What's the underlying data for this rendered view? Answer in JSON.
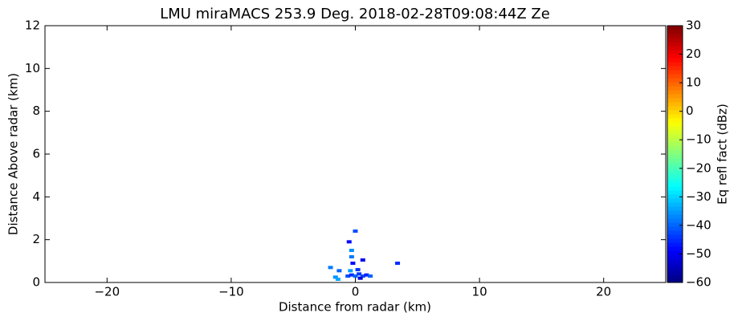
{
  "chart_data": {
    "type": "scatter",
    "title": "LMU miraMACS 253.9 Deg. 2018-02-28T09:08:44Z  Ze",
    "x_label": "Distance from radar (km)",
    "y_label": "Distance Above radar  (km)",
    "colorbar_label": "Eq refl fact (dBz)",
    "colormap": "jet",
    "xlim": [
      -25,
      25
    ],
    "xticks": [
      {
        "value": -20,
        "label": "−20"
      },
      {
        "value": -10,
        "label": "−10"
      },
      0,
      10,
      20
    ],
    "ylim": [
      0,
      12
    ],
    "yticks": [
      0,
      2,
      4,
      6,
      8,
      10,
      12
    ],
    "clim": [
      -60,
      30
    ],
    "cticks": [
      {
        "value": -60,
        "label": "−60"
      },
      {
        "value": -50,
        "label": "−50"
      },
      {
        "value": -40,
        "label": "−40"
      },
      {
        "value": -30,
        "label": "−30"
      },
      {
        "value": -20,
        "label": "−20"
      },
      {
        "value": -10,
        "label": "−10"
      },
      0,
      10,
      20,
      30
    ],
    "x": [
      -0.6,
      -0.3,
      0,
      0.3,
      0.6,
      0.9,
      1.2,
      -0.4,
      -0.3,
      -0.3,
      -0.5,
      0,
      0.6,
      -1.3,
      -1.6,
      -2.0,
      3.4,
      -0.2,
      0.2,
      -1.4,
      0.4
    ],
    "y": [
      0.3,
      0.35,
      0.3,
      0.4,
      0.3,
      0.35,
      0.3,
      0.55,
      1.2,
      1.5,
      1.9,
      2.4,
      1.05,
      0.55,
      0.25,
      0.7,
      0.9,
      0.9,
      0.6,
      0.15,
      0.2
    ],
    "values": [
      -42,
      -45,
      -40,
      -44,
      -42,
      -46,
      -40,
      -35,
      -38,
      -36,
      -48,
      -42,
      -50,
      -40,
      -36,
      -38,
      -45,
      -48,
      -44,
      -34,
      -52
    ]
  }
}
